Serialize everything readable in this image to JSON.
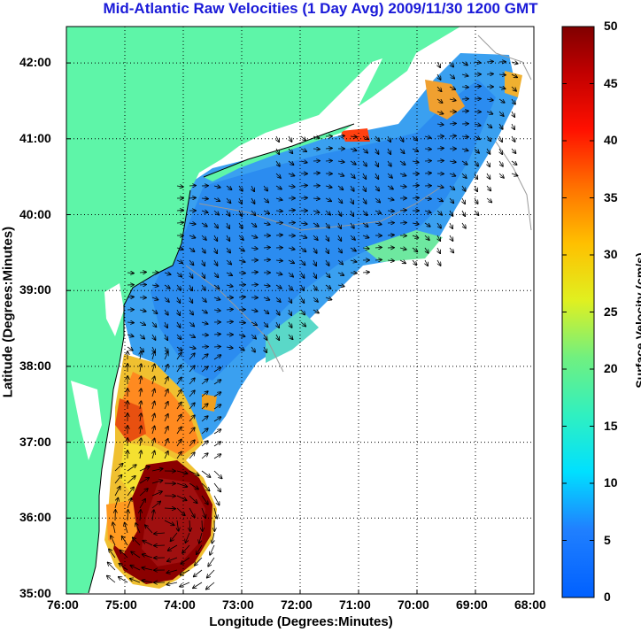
{
  "title": "Mid-Atlantic Raw Velocities (1 Day Avg) 2009/11/30 1200 GMT",
  "xaxis": {
    "label": "Longitude (Degrees:Minutes)",
    "ticks": [
      "76:00",
      "75:00",
      "74:00",
      "73:00",
      "72:00",
      "71:00",
      "70:00",
      "69:00",
      "68:00"
    ]
  },
  "yaxis": {
    "label": "Latitude (Degrees:Minutes)",
    "ticks": [
      "35:00",
      "36:00",
      "37:00",
      "38:00",
      "39:00",
      "40:00",
      "41:00",
      "42:00"
    ]
  },
  "colorbar": {
    "label": "Surface Velocity (cm/s)",
    "ticks": [
      "0",
      "5",
      "10",
      "15",
      "20",
      "25",
      "30",
      "35",
      "40",
      "45",
      "50"
    ],
    "range": [
      0,
      50
    ]
  },
  "colors": {
    "land": "#5ef5a8",
    "ocean": "#ffffff",
    "title": "#1a1ad8",
    "grid": "#000000"
  }
}
